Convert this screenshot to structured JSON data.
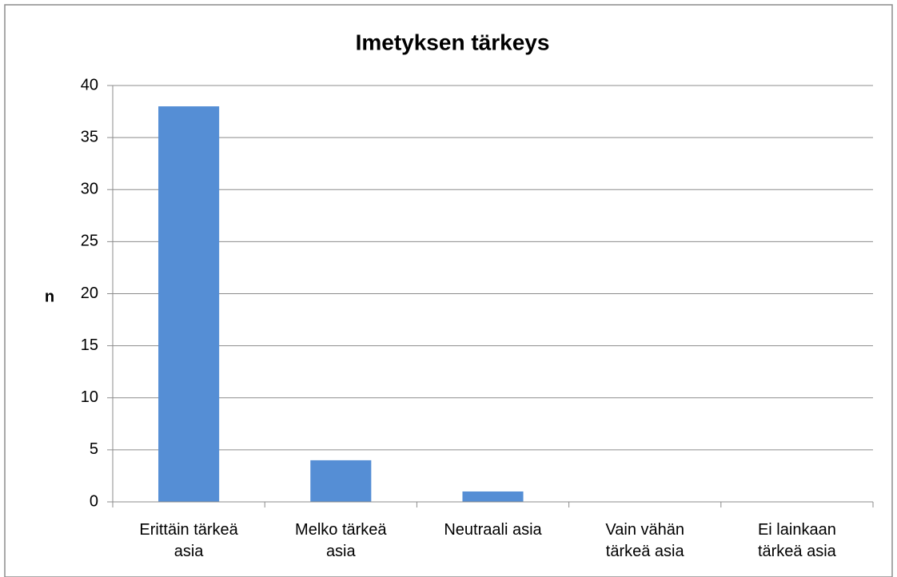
{
  "chart_data": {
    "type": "bar",
    "title": "Imetyksen tärkeys",
    "y_label": "n",
    "categories": [
      "Erittäin tärkeä asia",
      "Melko tärkeä asia",
      "Neutraali asia",
      "Vain vähän tärkeä asia",
      "Ei lainkaan tärkeä asia"
    ],
    "values": [
      38,
      4,
      1,
      0,
      0
    ],
    "color": "#558ed5",
    "ylim": [
      0,
      40
    ],
    "yticks": [
      0,
      5,
      10,
      15,
      20,
      25,
      30,
      35,
      40
    ],
    "grid": true
  }
}
